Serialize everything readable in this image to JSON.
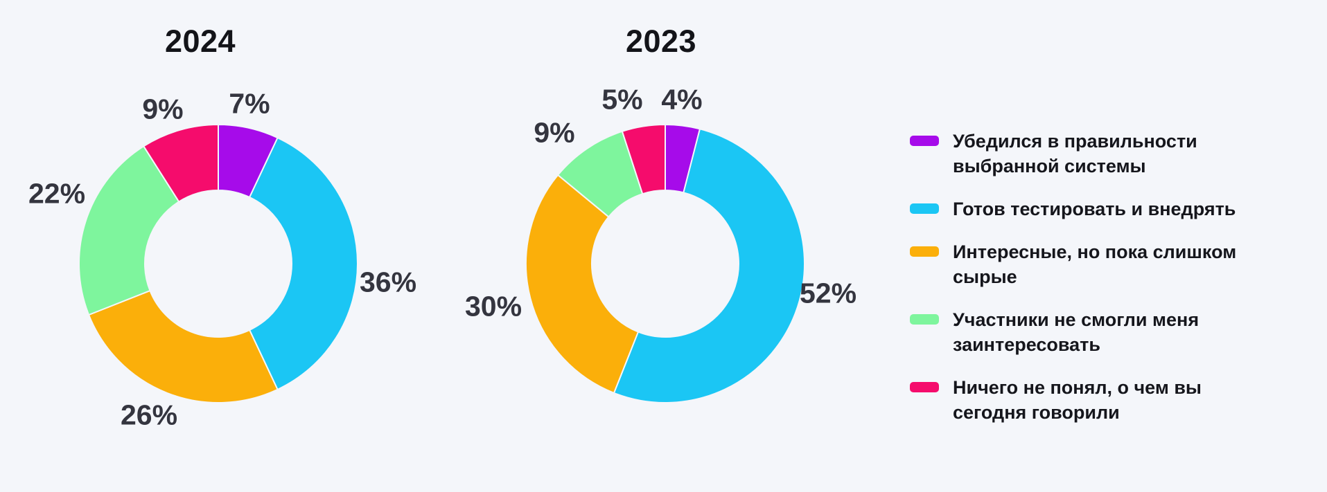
{
  "page": {
    "background": "#F4F6FA",
    "text_color_labels": "#34353F",
    "text_color_titles": "#131419"
  },
  "legend": {
    "position": "right",
    "items": [
      {
        "label": "Убедился в правильности выбранной системы",
        "color": "#A60BEA"
      },
      {
        "label": "Готов тестировать и внедрять",
        "color": "#1BC6F4"
      },
      {
        "label": "Интересные, но пока слишком сырые",
        "color": "#FBAF0A"
      },
      {
        "label": "Участники не смогли меня заинтересовать",
        "color": "#7EF59D"
      },
      {
        "label": "Ничего не понял, о чем вы сегодня говорили",
        "color": "#F50C6C"
      }
    ]
  },
  "chart_data": [
    {
      "type": "pie",
      "subtype": "donut",
      "title": "2024",
      "unit": "%",
      "start_angle_deg": 0,
      "direction": "clockwise",
      "categories": [
        "Убедился в правильности выбранной системы",
        "Готов тестировать и внедрять",
        "Интересные, но пока слишком сырые",
        "Участники не смогли меня заинтересовать",
        "Ничего не понял, о чем вы сегодня говорили"
      ],
      "values": [
        7,
        36,
        26,
        22,
        9
      ],
      "data_labels": [
        "7%",
        "36%",
        "26%",
        "22%",
        "9%"
      ],
      "colors": [
        "#A60BEA",
        "#1BC6F4",
        "#FBAF0A",
        "#7EF59D",
        "#F50C6C"
      ],
      "legend_position": "right"
    },
    {
      "type": "pie",
      "subtype": "donut",
      "title": "2023",
      "unit": "%",
      "start_angle_deg": 0,
      "direction": "clockwise",
      "categories": [
        "Убедился в правильности выбранной системы",
        "Готов тестировать и внедрять",
        "Интересные, но пока слишком сырые",
        "Участники не смогли меня заинтересовать",
        "Ничего не понял, о чем вы сегодня говорили"
      ],
      "values": [
        4,
        52,
        30,
        9,
        5
      ],
      "data_labels": [
        "4%",
        "52%",
        "30%",
        "9%",
        "5%"
      ],
      "colors": [
        "#A60BEA",
        "#1BC6F4",
        "#FBAF0A",
        "#7EF59D",
        "#F50C6C"
      ],
      "legend_position": "right"
    }
  ]
}
